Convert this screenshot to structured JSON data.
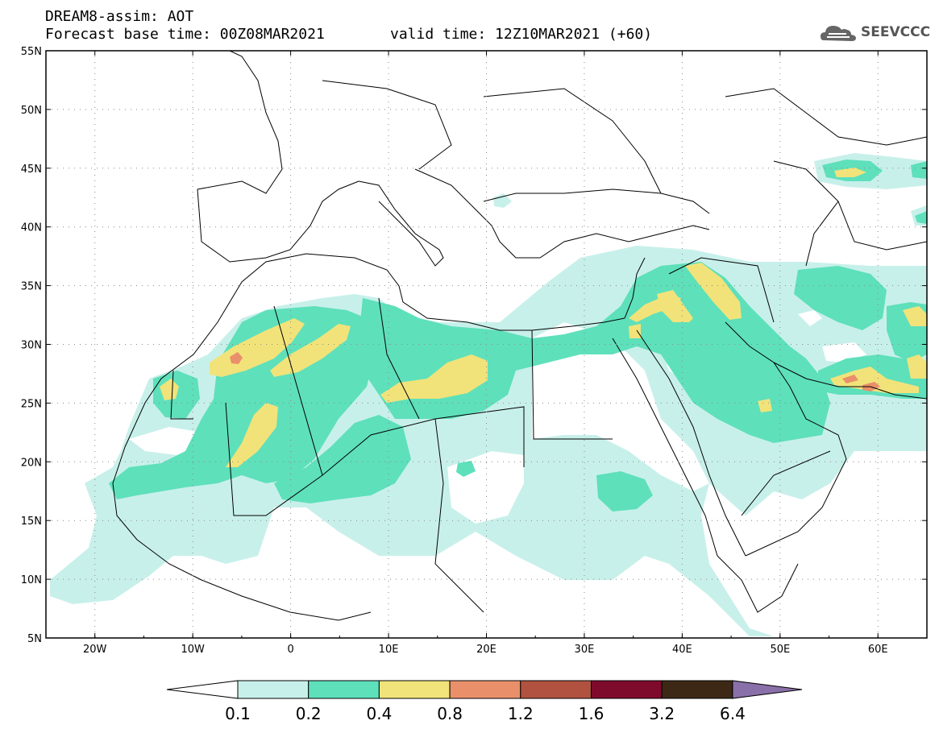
{
  "header": {
    "line1": "DREAM8-assim: AOT",
    "line2": "Forecast base time: 00Z08MAR2021",
    "valid": "valid time: 12Z10MAR2021 (+60)",
    "logo": "SEEVCCC"
  },
  "map": {
    "lon_range": [
      -25,
      65
    ],
    "lat_range": [
      5,
      55
    ],
    "lon_ticks": [
      "20W",
      "10W",
      "0",
      "10E",
      "20E",
      "30E",
      "40E",
      "50E",
      "60E"
    ],
    "lat_ticks": [
      "55N",
      "50N",
      "45N",
      "40N",
      "35N",
      "30N",
      "25N",
      "20N",
      "15N",
      "10N",
      "5N"
    ],
    "grid": "dotted"
  },
  "colorbar": {
    "labels": [
      "0.1",
      "0.2",
      "0.4",
      "0.8",
      "1.2",
      "1.6",
      "3.2",
      "6.4"
    ],
    "colors": [
      "#ffffff",
      "#c8f0ea",
      "#5ee0bb",
      "#f1e37a",
      "#e9906a",
      "#b0523f",
      "#7e0a2c",
      "#3d2816",
      "#8a70a8"
    ]
  }
}
